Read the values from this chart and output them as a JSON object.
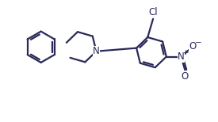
{
  "bg_color": "#ffffff",
  "line_color": "#2a2a5a",
  "line_width": 1.6,
  "font_size": 8.5,
  "figsize": [
    2.75,
    1.54
  ],
  "dpi": 100,
  "xlim": [
    0,
    10.0
  ],
  "ylim": [
    0,
    5.6
  ]
}
